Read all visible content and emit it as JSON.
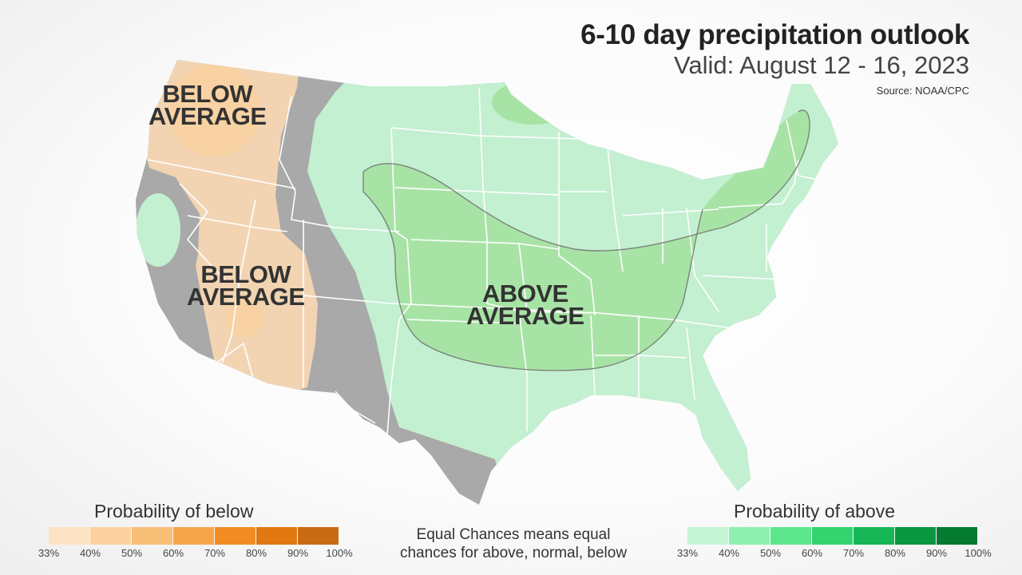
{
  "header": {
    "title": "6-10 day precipitation outlook",
    "subtitle": "Valid: August 12 - 16, 2023",
    "source": "Source: NOAA/CPC"
  },
  "map_labels": {
    "below_nw": [
      "BELOW",
      "AVERAGE"
    ],
    "below_sw": [
      "BELOW",
      "AVERAGE"
    ],
    "above_central": [
      "ABOVE",
      "AVERAGE"
    ]
  },
  "legend": {
    "below": {
      "title": "Probability of below",
      "ticks": [
        "33%",
        "40%",
        "50%",
        "60%",
        "70%",
        "80%",
        "90%",
        "100%"
      ],
      "colors": [
        "#fde3c3",
        "#fbd29f",
        "#f8bf78",
        "#f5a64b",
        "#f28c23",
        "#e27812",
        "#c96b13"
      ]
    },
    "above": {
      "title": "Probability of above",
      "ticks": [
        "33%",
        "40%",
        "50%",
        "60%",
        "70%",
        "80%",
        "90%",
        "100%"
      ],
      "colors": [
        "#c6f5d6",
        "#8df0b0",
        "#5de68e",
        "#34d370",
        "#17b656",
        "#0b9641",
        "#057a31"
      ]
    },
    "equal_chances": [
      "Equal Chances means equal",
      "chances for above, normal, below"
    ]
  },
  "colors": {
    "equal_chances_gray": "#a9a9a9",
    "below_33": "#f2d4b2",
    "above_33": "#c3f0d0",
    "above_40": "#a8e3a6",
    "above_40_northeast": "#9ed39c",
    "state_border": "#ffffff"
  }
}
